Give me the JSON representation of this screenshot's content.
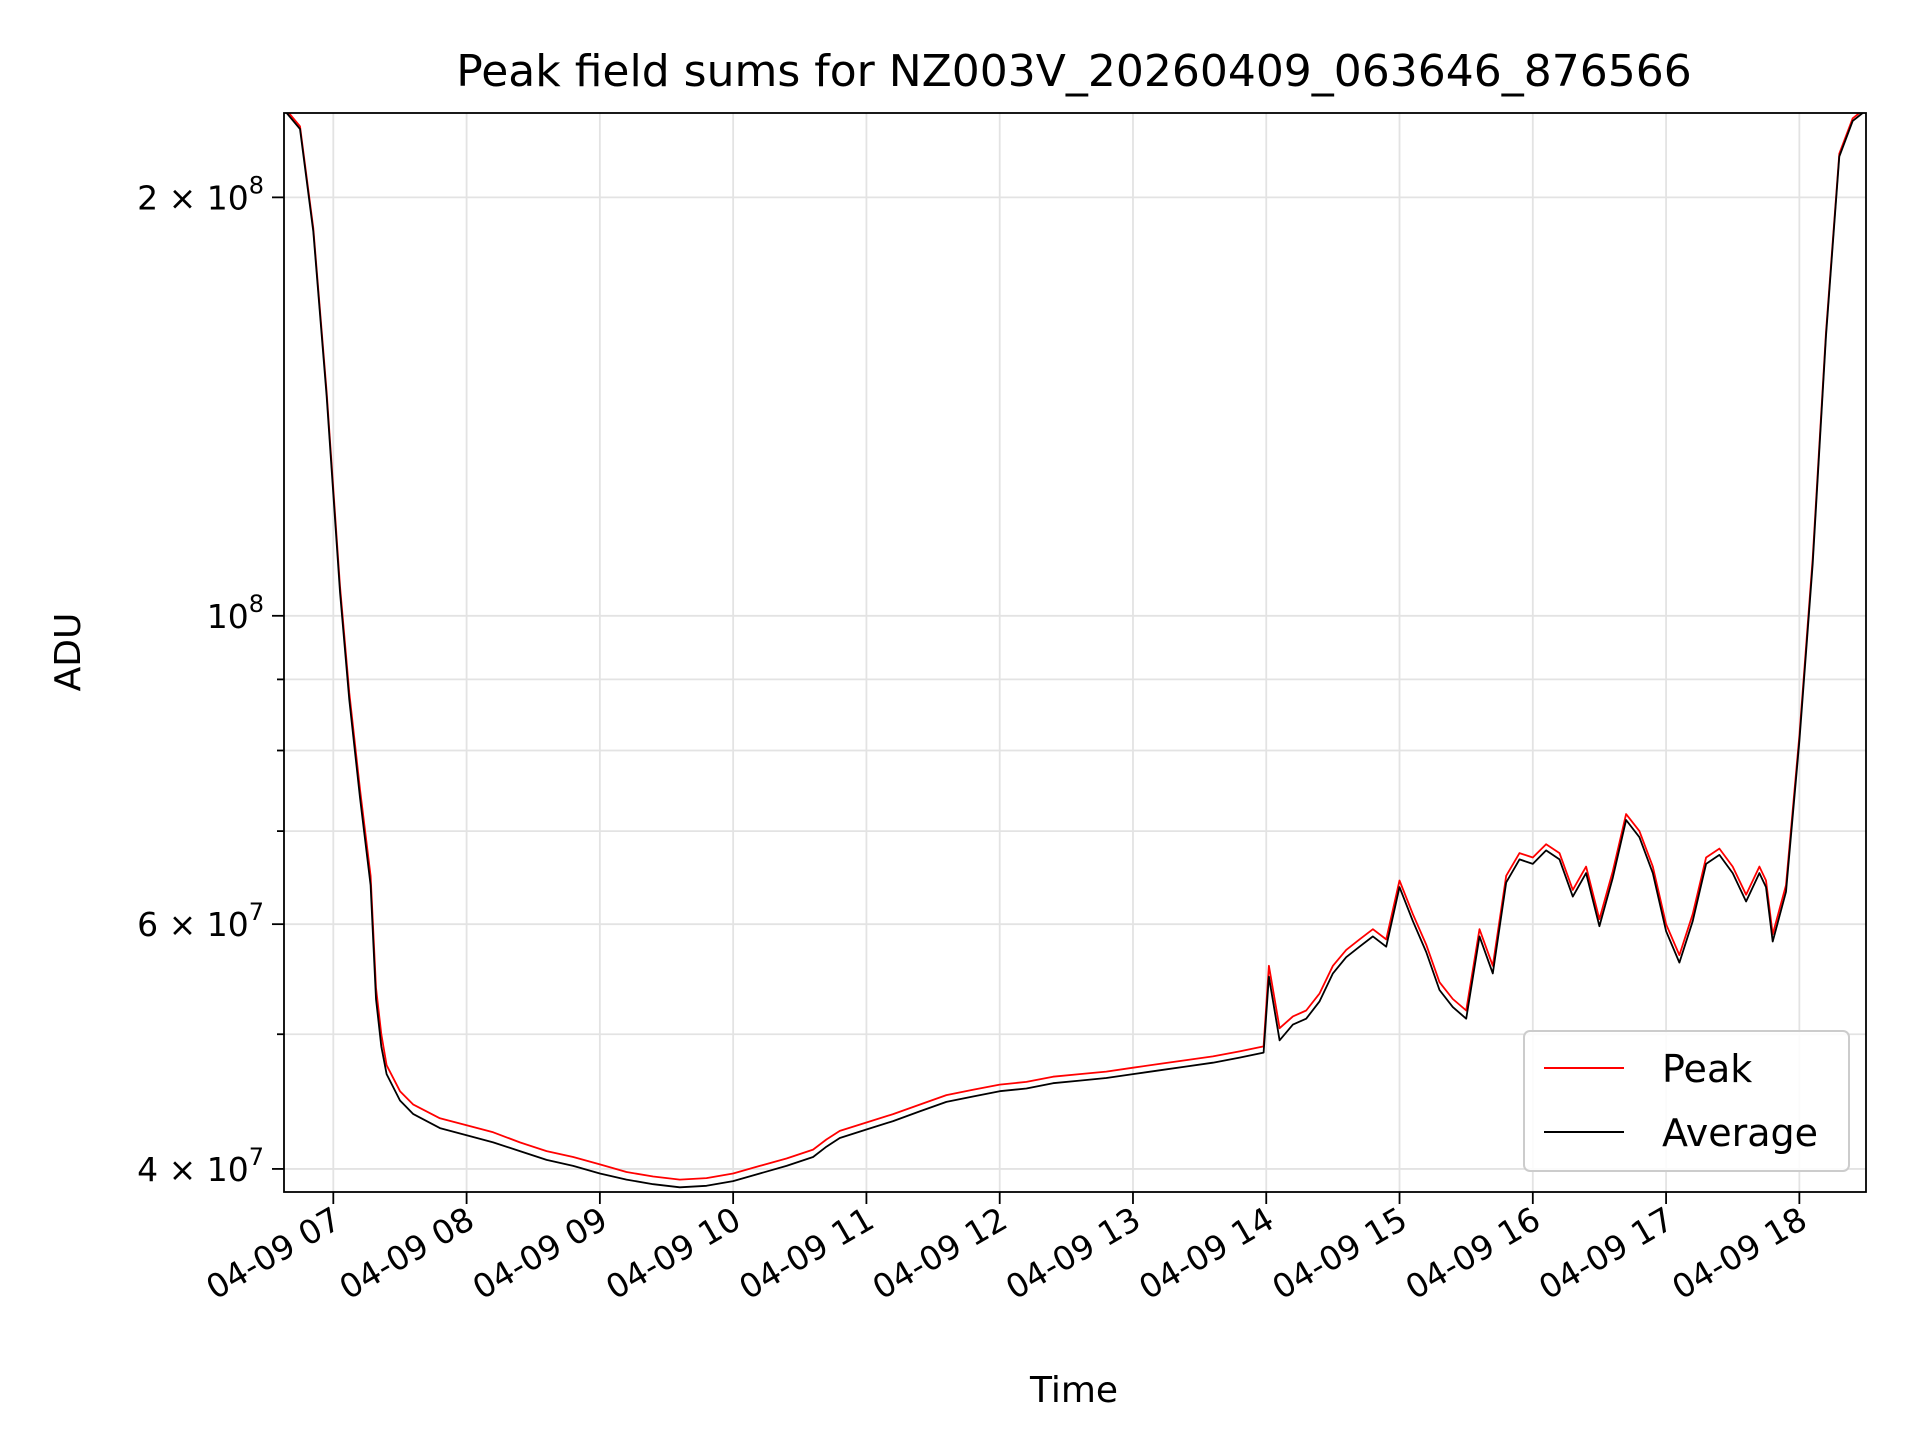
{
  "chart_data": {
    "type": "line",
    "title": "Peak field sums for NZ003V_20260409_063646_876566",
    "xlabel": "Time",
    "ylabel": "ADU",
    "yscale": "log",
    "grid": true,
    "legend_position": "lower-right",
    "x_unit": "hour of 2026-04-09",
    "xlim": [
      6.63,
      18.5
    ],
    "ylim": [
      38500000,
      230000000
    ],
    "x_ticks": [
      7,
      8,
      9,
      10,
      11,
      12,
      13,
      14,
      15,
      16,
      17,
      18
    ],
    "x_tick_labels": [
      "04-09 07",
      "04-09 08",
      "04-09 09",
      "04-09 10",
      "04-09 11",
      "04-09 12",
      "04-09 13",
      "04-09 14",
      "04-09 15",
      "04-09 16",
      "04-09 17",
      "04-09 18"
    ],
    "y_major_ticks": [
      {
        "value": 40000000,
        "base": "4 × 10",
        "exp": "7"
      },
      {
        "value": 60000000,
        "base": "6 × 10",
        "exp": "7"
      },
      {
        "value": 100000000,
        "base": "10",
        "exp": "8"
      },
      {
        "value": 200000000,
        "base": "2 × 10",
        "exp": "8"
      }
    ],
    "y_minor_ticks": [
      50000000,
      70000000,
      80000000,
      90000000
    ],
    "series": [
      {
        "name": "Peak",
        "color": "#ff0000",
        "x": [
          6.65,
          6.75,
          6.85,
          6.95,
          7.05,
          7.12,
          7.2,
          7.28,
          7.32,
          7.36,
          7.4,
          7.5,
          7.6,
          7.8,
          8.0,
          8.2,
          8.4,
          8.6,
          8.8,
          9.0,
          9.2,
          9.4,
          9.6,
          9.8,
          10.0,
          10.2,
          10.4,
          10.6,
          10.7,
          10.8,
          11.0,
          11.2,
          11.4,
          11.6,
          11.8,
          12.0,
          12.2,
          12.4,
          12.6,
          12.8,
          13.0,
          13.2,
          13.4,
          13.6,
          13.8,
          13.98,
          14.02,
          14.1,
          14.2,
          14.3,
          14.4,
          14.5,
          14.6,
          14.7,
          14.8,
          14.9,
          15.0,
          15.1,
          15.2,
          15.3,
          15.4,
          15.5,
          15.6,
          15.7,
          15.8,
          15.9,
          16.0,
          16.1,
          16.2,
          16.3,
          16.4,
          16.5,
          16.6,
          16.7,
          16.8,
          16.9,
          17.0,
          17.1,
          17.2,
          17.3,
          17.4,
          17.5,
          17.6,
          17.7,
          17.75,
          17.8,
          17.9,
          18.0,
          18.1,
          18.2,
          18.3,
          18.4,
          18.5
        ],
        "y": [
          231000000,
          225000000,
          190000000,
          145000000,
          105000000,
          88000000,
          75000000,
          65000000,
          54000000,
          50000000,
          47500000,
          45500000,
          44500000,
          43500000,
          43000000,
          42500000,
          41800000,
          41200000,
          40800000,
          40300000,
          39800000,
          39500000,
          39300000,
          39400000,
          39700000,
          40200000,
          40700000,
          41300000,
          42000000,
          42600000,
          43200000,
          43800000,
          44500000,
          45200000,
          45600000,
          46000000,
          46200000,
          46600000,
          46800000,
          47000000,
          47300000,
          47600000,
          47900000,
          48200000,
          48600000,
          49000000,
          56000000,
          50500000,
          51500000,
          52000000,
          53500000,
          56000000,
          57500000,
          58500000,
          59500000,
          58500000,
          64500000,
          61000000,
          58000000,
          54500000,
          53000000,
          52000000,
          59500000,
          56000000,
          65000000,
          67500000,
          67000000,
          68500000,
          67500000,
          63500000,
          66000000,
          60500000,
          65500000,
          72000000,
          70000000,
          66000000,
          60000000,
          57000000,
          61000000,
          67000000,
          68000000,
          66000000,
          63000000,
          66000000,
          64500000,
          59000000,
          64000000,
          82000000,
          110000000,
          160000000,
          215000000,
          228000000,
          232000000
        ]
      },
      {
        "name": "Average",
        "color": "#000000",
        "x": [
          6.65,
          6.75,
          6.85,
          6.95,
          7.05,
          7.12,
          7.2,
          7.28,
          7.32,
          7.36,
          7.4,
          7.5,
          7.6,
          7.8,
          8.0,
          8.2,
          8.4,
          8.6,
          8.8,
          9.0,
          9.2,
          9.4,
          9.6,
          9.8,
          10.0,
          10.2,
          10.4,
          10.6,
          10.7,
          10.8,
          11.0,
          11.2,
          11.4,
          11.6,
          11.8,
          12.0,
          12.2,
          12.4,
          12.6,
          12.8,
          13.0,
          13.2,
          13.4,
          13.6,
          13.8,
          13.98,
          14.02,
          14.1,
          14.2,
          14.3,
          14.4,
          14.5,
          14.6,
          14.7,
          14.8,
          14.9,
          15.0,
          15.1,
          15.2,
          15.3,
          15.4,
          15.5,
          15.6,
          15.7,
          15.8,
          15.9,
          16.0,
          16.1,
          16.2,
          16.3,
          16.4,
          16.5,
          16.6,
          16.7,
          16.8,
          16.9,
          17.0,
          17.1,
          17.2,
          17.3,
          17.4,
          17.5,
          17.6,
          17.7,
          17.75,
          17.8,
          17.9,
          18.0,
          18.1,
          18.2,
          18.3,
          18.4,
          18.5
        ],
        "y": [
          230000000,
          224000000,
          189000000,
          144000000,
          104000000,
          87000000,
          74000000,
          64000000,
          53000000,
          49000000,
          46800000,
          44800000,
          43800000,
          42800000,
          42300000,
          41800000,
          41200000,
          40600000,
          40200000,
          39700000,
          39300000,
          39000000,
          38800000,
          38900000,
          39200000,
          39700000,
          40200000,
          40800000,
          41500000,
          42100000,
          42700000,
          43300000,
          44000000,
          44700000,
          45100000,
          45500000,
          45700000,
          46100000,
          46300000,
          46500000,
          46800000,
          47100000,
          47400000,
          47700000,
          48100000,
          48500000,
          55000000,
          49500000,
          50800000,
          51300000,
          52800000,
          55300000,
          56800000,
          57800000,
          58800000,
          57800000,
          63800000,
          60300000,
          57300000,
          53800000,
          52300000,
          51300000,
          58800000,
          55300000,
          64300000,
          66800000,
          66300000,
          67800000,
          66800000,
          62800000,
          65300000,
          59800000,
          64800000,
          71300000,
          69300000,
          65300000,
          59300000,
          56300000,
          60300000,
          66300000,
          67300000,
          65300000,
          62300000,
          65300000,
          63800000,
          58300000,
          63300000,
          81300000,
          109000000,
          159000000,
          214000000,
          227000000,
          231000000
        ]
      }
    ]
  }
}
